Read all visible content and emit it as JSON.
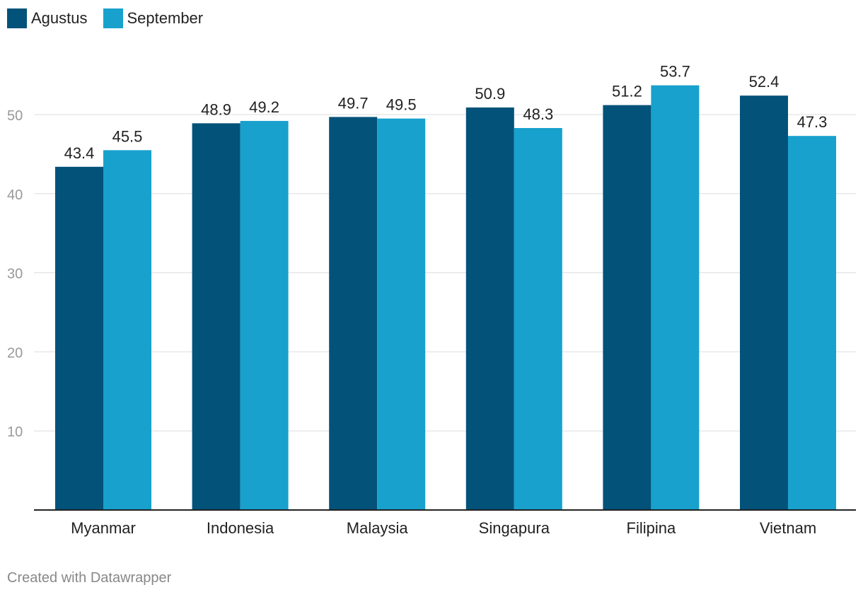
{
  "colors": {
    "agustus": "#03527a",
    "september": "#18a1cd",
    "grid": "#dddddd",
    "baseline": "#222222",
    "tick_text": "#999999",
    "label_text": "#222222",
    "footer_text": "#888888"
  },
  "footer": {
    "credit": "Created with Datawrapper"
  },
  "chart_data": {
    "type": "bar",
    "title": "",
    "xlabel": "",
    "ylabel": "",
    "categories": [
      "Myanmar",
      "Indonesia",
      "Malaysia",
      "Singapura",
      "Filipina",
      "Vietnam"
    ],
    "series": [
      {
        "name": "Agustus",
        "values": [
          43.4,
          48.9,
          49.7,
          50.9,
          51.2,
          52.4
        ],
        "value_labels": [
          "43.4",
          "48.9",
          "49.7",
          "50.9",
          "51.2",
          "52.4"
        ]
      },
      {
        "name": "September",
        "values": [
          45.5,
          49.2,
          49.5,
          48.3,
          53.7,
          47.3
        ],
        "value_labels": [
          "45.5",
          "49.2",
          "49.5",
          "48.3",
          "53.7",
          "47.3"
        ]
      }
    ],
    "ylim": [
      0,
      56
    ],
    "yticks": [
      10,
      20,
      30,
      40,
      50
    ],
    "grid": true,
    "legend": "top-left"
  }
}
